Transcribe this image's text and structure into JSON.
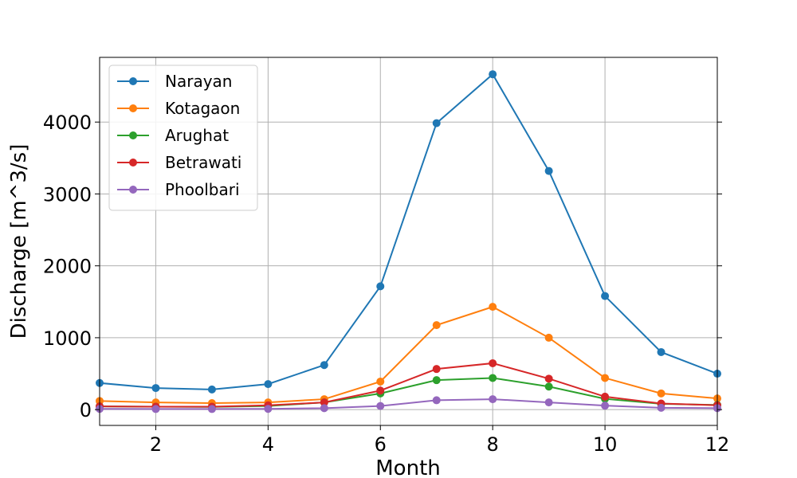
{
  "chart_data": {
    "type": "line",
    "title": "",
    "xlabel": "Month",
    "ylabel": "Discharge [m^3/s]",
    "xlim": [
      1,
      12
    ],
    "ylim": [
      -220,
      4900
    ],
    "xticks": [
      2,
      4,
      6,
      8,
      10,
      12
    ],
    "xtick_labels": [
      "2",
      "4",
      "6",
      "8",
      "10",
      "12"
    ],
    "yticks": [
      0,
      1000,
      2000,
      3000,
      4000
    ],
    "ytick_labels": [
      "0",
      "1000",
      "2000",
      "3000",
      "4000"
    ],
    "grid": true,
    "legend_position": "top-left",
    "x": [
      1,
      2,
      3,
      4,
      5,
      6,
      7,
      8,
      9,
      10,
      11,
      12
    ],
    "series": [
      {
        "name": "Narayan",
        "color": "#1f77b4",
        "values": [
          370,
          300,
          280,
          355,
          620,
          1715,
          3985,
          4665,
          3320,
          1580,
          800,
          500
        ]
      },
      {
        "name": "Kotagaon",
        "color": "#ff7f0e",
        "values": [
          120,
          100,
          90,
          100,
          145,
          390,
          1175,
          1430,
          1000,
          440,
          225,
          155
        ]
      },
      {
        "name": "Arughat",
        "color": "#2ca02c",
        "values": [
          45,
          40,
          38,
          50,
          100,
          225,
          410,
          440,
          320,
          150,
          80,
          65
        ]
      },
      {
        "name": "Betrawati",
        "color": "#d62728",
        "values": [
          45,
          40,
          40,
          60,
          100,
          265,
          565,
          645,
          430,
          180,
          85,
          60
        ]
      },
      {
        "name": "Phoolbari",
        "color": "#9467bd",
        "values": [
          10,
          8,
          8,
          10,
          20,
          50,
          130,
          145,
          100,
          55,
          25,
          20
        ]
      }
    ]
  }
}
